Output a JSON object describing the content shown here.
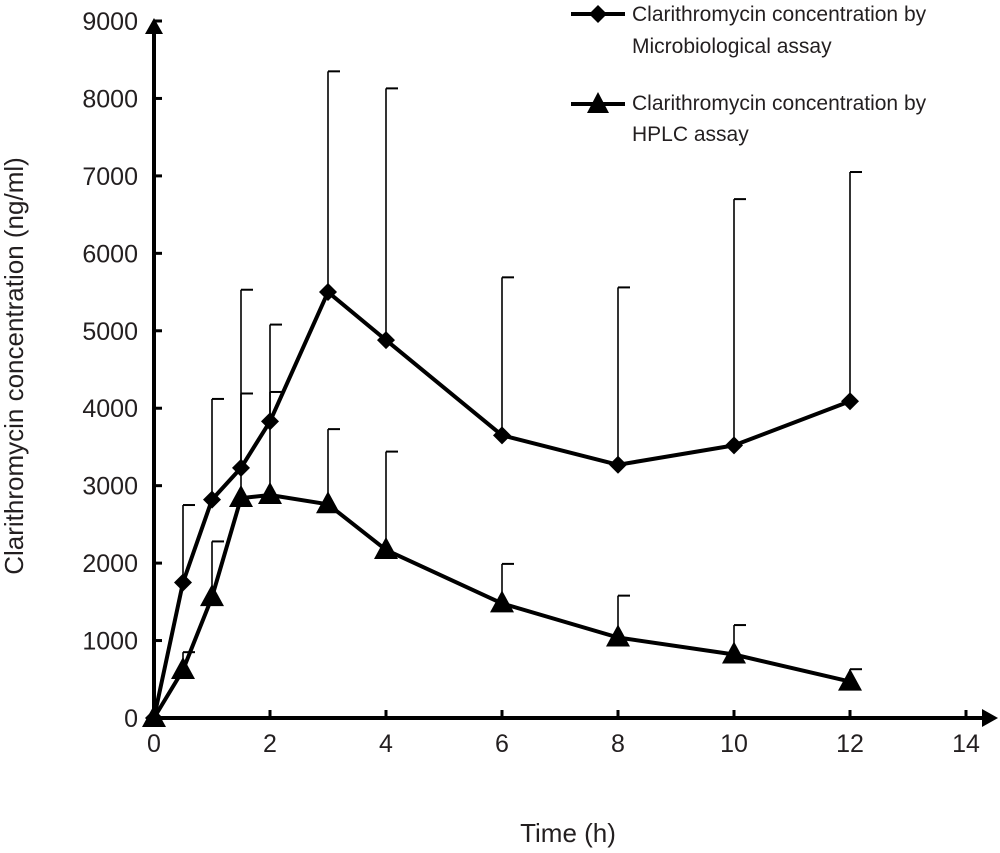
{
  "chart_data": {
    "type": "line",
    "title": "",
    "xlabel": "Time (h)",
    "ylabel": "Clarithromycin concentration (ng/ml)",
    "xlim": [
      0,
      14
    ],
    "ylim": [
      0,
      9000
    ],
    "x_ticks": [
      0,
      2,
      4,
      6,
      8,
      10,
      12,
      14
    ],
    "y_ticks": [
      0,
      1000,
      2000,
      3000,
      4000,
      5000,
      6000,
      7000,
      8000,
      9000
    ],
    "grid": false,
    "legend_position": "top-right",
    "colors": {
      "series": "#000000",
      "axis": "#000000",
      "text": "#231f20"
    },
    "series": [
      {
        "name": "Clarithromycin concentration by Microbiological assay",
        "legend_lines": [
          "Clarithromycin concentration by",
          "Microbiological assay"
        ],
        "marker": "diamond",
        "x": [
          0,
          0.5,
          1,
          1.5,
          2,
          3,
          4,
          6,
          8,
          10,
          12
        ],
        "y": [
          0,
          1750,
          2820,
          3230,
          3830,
          5500,
          4880,
          3650,
          3270,
          3520,
          4090
        ],
        "error_upper": [
          0,
          2750,
          4120,
          5530,
          5080,
          8350,
          8130,
          5690,
          5560,
          6700,
          7050
        ]
      },
      {
        "name": "Clarithromycin concentration by HPLC assay",
        "legend_lines": [
          "Clarithromycin concentration by",
          "HPLC assay"
        ],
        "marker": "triangle",
        "x": [
          0,
          0.5,
          1,
          1.5,
          2,
          3,
          4,
          6,
          8,
          10,
          12
        ],
        "y": [
          0,
          620,
          1560,
          2840,
          2880,
          2760,
          2170,
          1480,
          1040,
          820,
          470
        ],
        "error_upper": [
          0,
          850,
          2280,
          4190,
          4210,
          3730,
          3440,
          1990,
          1580,
          1200,
          630
        ]
      }
    ]
  }
}
